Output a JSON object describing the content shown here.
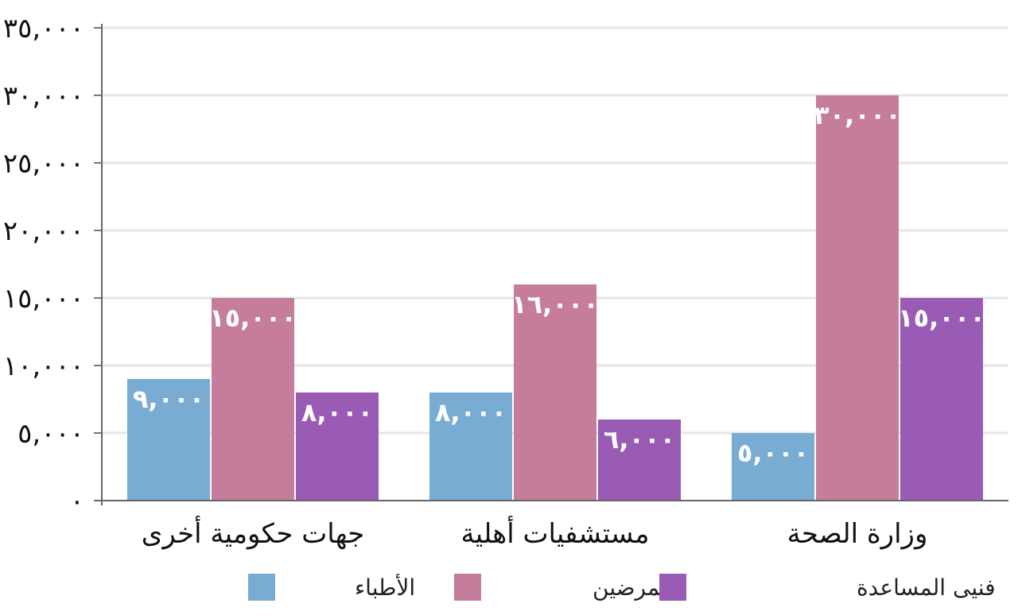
{
  "chart_data": {
    "type": "bar",
    "categories": [
      "وزارة الصحة",
      "مستشفيات أهلية",
      "جهات حكومية أخرى"
    ],
    "series": [
      {
        "name": "الأطباء",
        "color": "#79acd3",
        "values": [
          5000,
          8000,
          9000
        ],
        "labels": [
          "٥,٠٠٠",
          "٨,٠٠٠",
          "٩,٠٠٠"
        ]
      },
      {
        "name": "الممرضين",
        "color": "#c67d9b",
        "values": [
          30000,
          16000,
          15000
        ],
        "labels": [
          "٣٠,٠٠٠",
          "١٦,٠٠٠",
          "١٥,٠٠٠"
        ]
      },
      {
        "name": "فنيى المساعدة",
        "color": "#9a5bb5",
        "values": [
          15000,
          6000,
          8000
        ],
        "labels": [
          "١٥,٠٠٠",
          "٦,٠٠٠",
          "٨,٠٠٠"
        ]
      }
    ],
    "y_ticks": [
      0,
      5000,
      10000,
      15000,
      20000,
      25000,
      30000,
      35000
    ],
    "y_tick_labels": [
      "٠",
      "٥,٠٠٠",
      "١٠,٠٠٠",
      "١٥,٠٠٠",
      "٢٠,٠٠٠",
      "٢٥,٠٠٠",
      "٣٠,٠٠٠",
      "٣٥,٠٠٠"
    ],
    "ylim": [
      0,
      35000
    ],
    "grid": true,
    "legend_position": "bottom",
    "title": "",
    "xlabel": "",
    "ylabel": ""
  }
}
